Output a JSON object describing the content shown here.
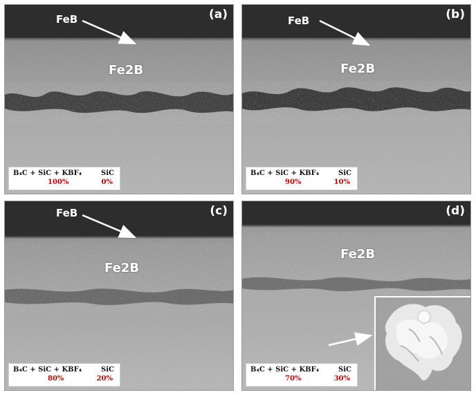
{
  "phase_labels": {
    "feb": "FeB",
    "fe2b_prefix": "Fe",
    "fe2b_sub": "2",
    "fe2b_suffix": "B"
  },
  "legend_text": {
    "mixture": "B₄C + SiC + KBF₄",
    "sic": "SiC"
  },
  "colors": {
    "percent": "#c00000",
    "annotation": "#ffffff",
    "background": "#ffffff"
  },
  "panels": [
    {
      "label": "(a)",
      "mixture_pct": "100%",
      "sic_pct": "0%",
      "shows_feb": true,
      "shows_inset": false
    },
    {
      "label": "(b)",
      "mixture_pct": "90%",
      "sic_pct": "10%",
      "shows_feb": true,
      "shows_inset": false
    },
    {
      "label": "(c)",
      "mixture_pct": "80%",
      "sic_pct": "20%",
      "shows_feb": true,
      "shows_inset": false
    },
    {
      "label": "(d)",
      "mixture_pct": "70%",
      "sic_pct": "30%",
      "shows_feb": false,
      "shows_inset": true
    }
  ]
}
